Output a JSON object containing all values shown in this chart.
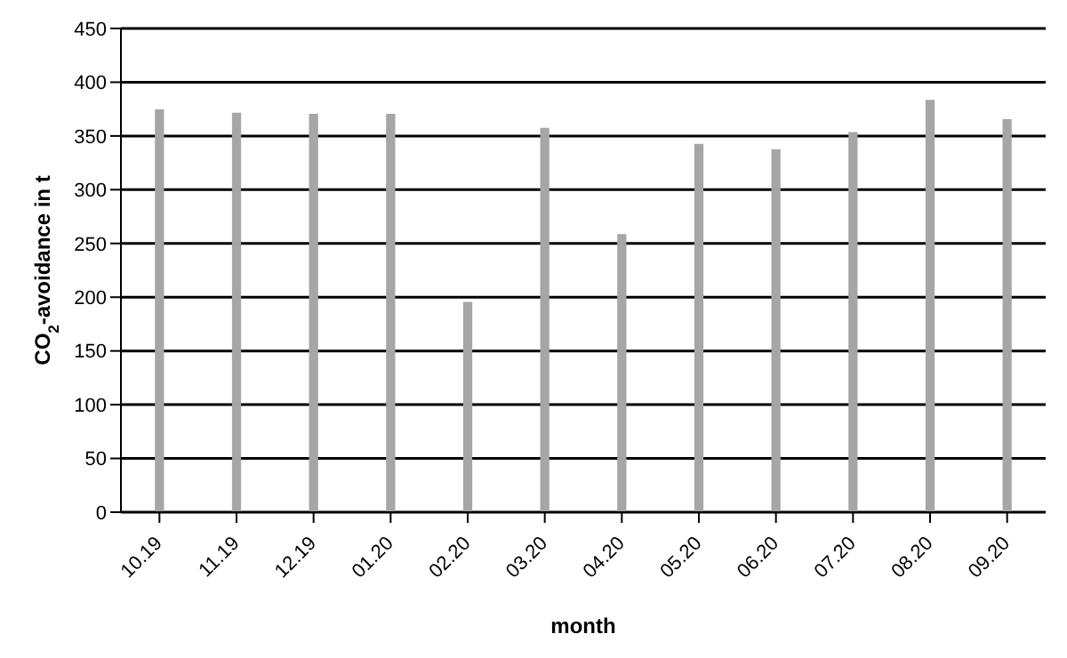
{
  "chart_data": {
    "type": "bar",
    "xlabel": "month",
    "ylabel": "CO$_{2}$-avoidance in t",
    "categories": [
      "10.19",
      "11.19",
      "12.19",
      "01.20",
      "02.20",
      "03.20",
      "04.20",
      "05.20",
      "06.20",
      "07.20",
      "08.20",
      "09.20"
    ],
    "values": [
      374,
      371,
      370,
      370,
      195,
      357,
      258,
      342,
      337,
      353,
      383,
      365
    ],
    "color": "#a6a6a6",
    "ylim": [
      0,
      450
    ],
    "yticks": [
      0,
      50,
      100,
      150,
      200,
      250,
      300,
      350,
      400,
      450
    ],
    "grid": "y"
  }
}
